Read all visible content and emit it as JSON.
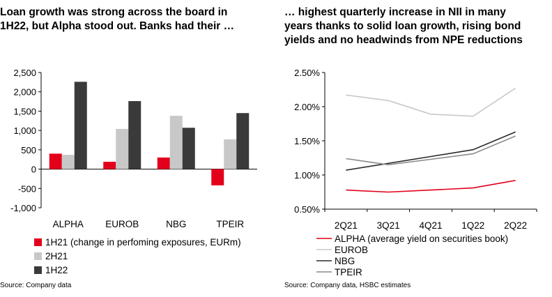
{
  "left": {
    "title": "Loan growth was strong across the board in\n1H22, but Alpha stood out. Banks had their …",
    "source": "Source: Company data"
  },
  "right": {
    "title": "… highest quarterly increase in NII in many\nyears thanks to solid loan growth, rising bond\nyields and no headwinds from NPE reductions",
    "source": "Source: Company data, HSBC estimates"
  },
  "chart_data": [
    {
      "type": "bar",
      "categories": [
        "ALPHA",
        "EUROB",
        "NBG",
        "TPEIR"
      ],
      "series": [
        {
          "name": "1H21 (change in perfoming exposures, EURm)",
          "color": "#e3001b",
          "values": [
            400,
            190,
            300,
            -420
          ]
        },
        {
          "name": "2H21",
          "color": "#c8c8c8",
          "values": [
            370,
            1040,
            1380,
            770
          ]
        },
        {
          "name": "1H22",
          "color": "#3a3a3a",
          "values": [
            2260,
            1760,
            1070,
            1450
          ]
        }
      ],
      "ylim": [
        -1000,
        2500
      ],
      "yticks": [
        2500,
        2000,
        1500,
        1000,
        500,
        0,
        -500,
        -1000
      ],
      "ytick_labels": [
        "2,500",
        "2,000",
        "1,500",
        "1,000",
        "500",
        "0",
        "-500",
        "-1,000"
      ],
      "legend_position": "bottom",
      "grid": false
    },
    {
      "type": "line",
      "x": [
        "2Q21",
        "3Q21",
        "4Q21",
        "1Q22",
        "2Q22"
      ],
      "series": [
        {
          "name": "ALPHA (average yield on securities book)",
          "color": "#e3001b",
          "values": [
            0.78,
            0.75,
            0.78,
            0.81,
            0.92
          ]
        },
        {
          "name": "EUROB",
          "color": "#c8c8c8",
          "values": [
            2.17,
            2.09,
            1.89,
            1.86,
            2.27
          ]
        },
        {
          "name": "NBG",
          "color": "#2a2a2a",
          "values": [
            1.07,
            1.17,
            1.27,
            1.37,
            1.63
          ]
        },
        {
          "name": "TPEIR",
          "color": "#8a8a8a",
          "values": [
            1.24,
            1.15,
            1.23,
            1.31,
            1.57
          ]
        }
      ],
      "ylim": [
        0.5,
        2.5
      ],
      "yticks": [
        2.5,
        2.0,
        1.5,
        1.0,
        0.5
      ],
      "ytick_labels": [
        "2.50%",
        "2.00%",
        "1.50%",
        "1.00%",
        "0.50%"
      ],
      "legend_position": "bottom",
      "grid": false
    }
  ]
}
